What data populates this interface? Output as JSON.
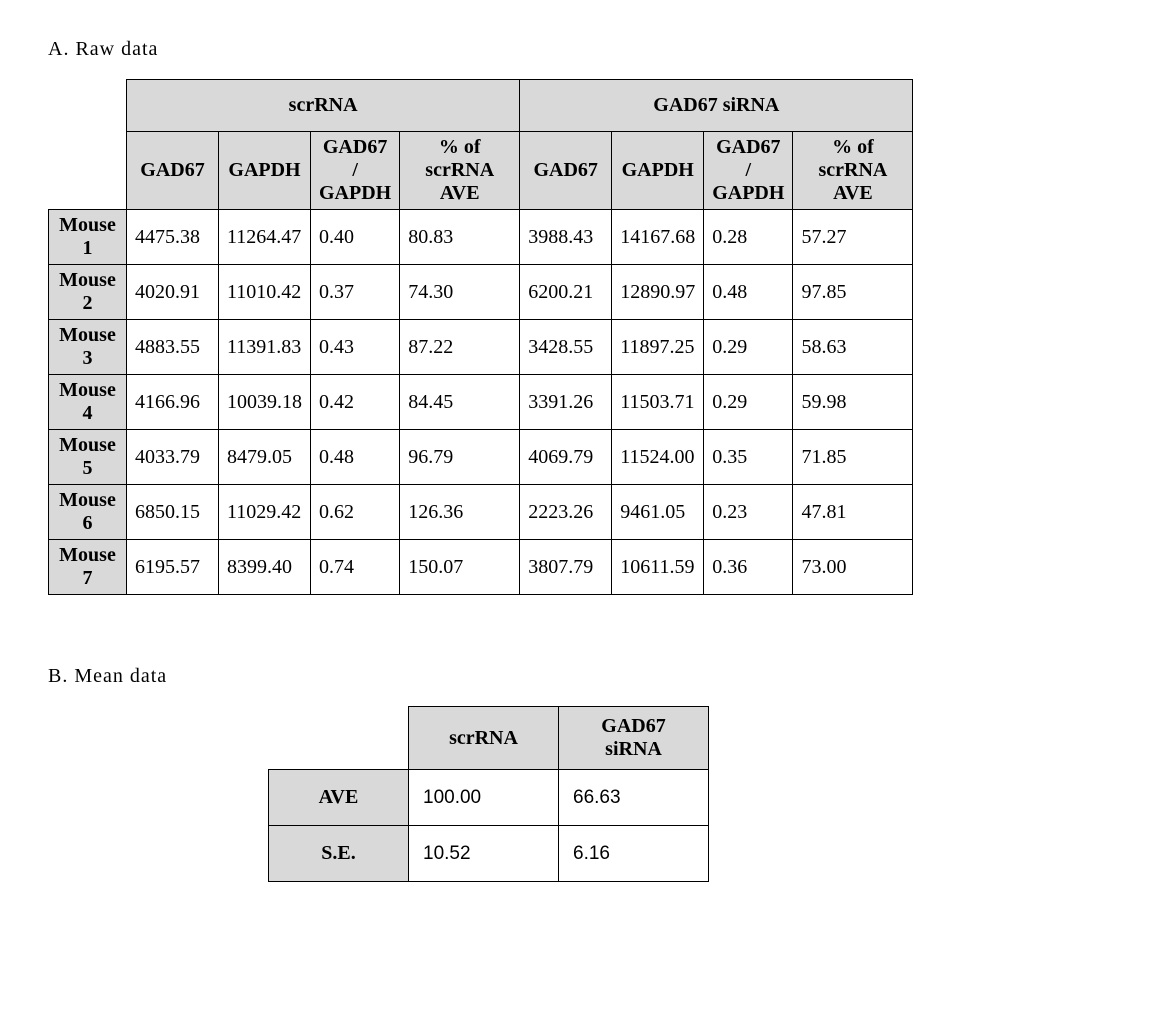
{
  "colors": {
    "header_bg": "#d9d9d9",
    "border": "#000000",
    "page_bg": "#ffffff",
    "text": "#000000"
  },
  "typography": {
    "serif_family": "Times New Roman",
    "sans_family": "Arial",
    "base_fontsize_pt": 15
  },
  "sectionA": {
    "label": "A. Raw data",
    "group_headers": [
      "scrRNA",
      "GAD67 siRNA"
    ],
    "sub_headers": [
      "GAD67",
      "GAPDH",
      "GAD67 / GAPDH",
      "% of scrRNA AVE"
    ],
    "row_labels": [
      "Mouse 1",
      "Mouse 2",
      "Mouse 3",
      "Mouse 4",
      "Mouse 5",
      "Mouse 6",
      "Mouse 7"
    ],
    "columns": [
      {
        "key": "scr_gad67"
      },
      {
        "key": "scr_gapdh"
      },
      {
        "key": "scr_ratio"
      },
      {
        "key": "scr_pct"
      },
      {
        "key": "si_gad67"
      },
      {
        "key": "si_gapdh"
      },
      {
        "key": "si_ratio"
      },
      {
        "key": "si_pct"
      }
    ],
    "rows": [
      [
        "4475.38",
        "11264.47",
        "0.40",
        "80.83",
        "3988.43",
        "14167.68",
        "0.28",
        "57.27"
      ],
      [
        "4020.91",
        "11010.42",
        "0.37",
        "74.30",
        "6200.21",
        "12890.97",
        "0.48",
        "97.85"
      ],
      [
        "4883.55",
        "11391.83",
        "0.43",
        "87.22",
        "3428.55",
        "11897.25",
        "0.29",
        "58.63"
      ],
      [
        "4166.96",
        "10039.18",
        "0.42",
        "84.45",
        "3391.26",
        "11503.71",
        "0.29",
        "59.98"
      ],
      [
        "4033.79",
        "8479.05",
        "0.48",
        "96.79",
        "4069.79",
        "11524.00",
        "0.35",
        "71.85"
      ],
      [
        "6850.15",
        "11029.42",
        "0.62",
        "126.36",
        "2223.26",
        "9461.05",
        "0.23",
        "47.81"
      ],
      [
        "6195.57",
        "8399.40",
        "0.74",
        "150.07",
        "3807.79",
        "10611.59",
        "0.36",
        "73.00"
      ]
    ]
  },
  "sectionB": {
    "label": "B. Mean data",
    "col_headers": [
      "scrRNA",
      "GAD67 siRNA"
    ],
    "row_labels": [
      "AVE",
      "S.E."
    ],
    "rows": [
      [
        "100.00",
        "66.63"
      ],
      [
        "10.52",
        "6.16"
      ]
    ]
  }
}
